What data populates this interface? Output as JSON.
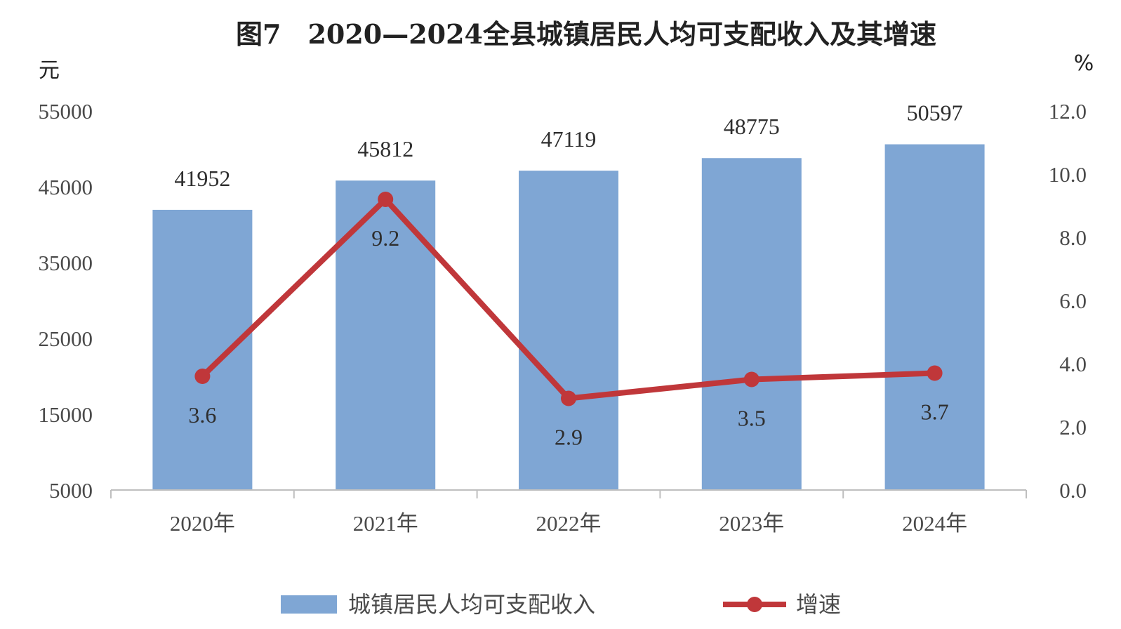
{
  "chart_data": {
    "type": "bar+line",
    "title": "图7　2020—2024全县城镇居民人均可支配收入及其增速",
    "categories": [
      "2020年",
      "2021年",
      "2022年",
      "2023年",
      "2024年"
    ],
    "series": [
      {
        "name": "城镇居民人均可支配收入",
        "type": "bar",
        "axis": "left",
        "color": "#7fa6d4",
        "values": [
          41952,
          45812,
          47119,
          48775,
          50597
        ]
      },
      {
        "name": "增速",
        "type": "line",
        "axis": "right",
        "color": "#c0373a",
        "values": [
          3.6,
          9.2,
          2.9,
          3.5,
          3.7
        ]
      }
    ],
    "left_axis": {
      "unit": "元",
      "min": 5000,
      "max": 55000,
      "ticks": [
        "55000",
        "45000",
        "35000",
        "25000",
        "15000",
        "5000"
      ]
    },
    "right_axis": {
      "unit": "%",
      "min": 0,
      "max": 12,
      "ticks": [
        "12.0",
        "10.0",
        "8.0",
        "6.0",
        "4.0",
        "2.0",
        "0.0"
      ]
    },
    "grid": false,
    "legend_position": "bottom-center"
  }
}
